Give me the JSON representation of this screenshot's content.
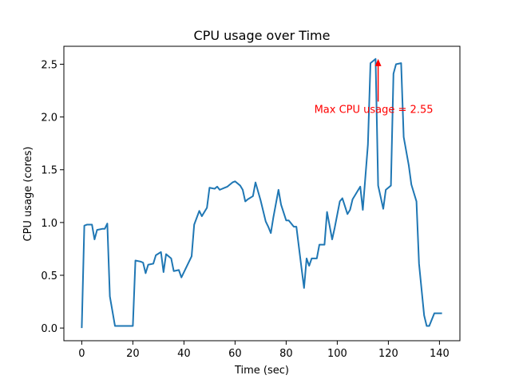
{
  "chart_data": {
    "type": "line",
    "title": "CPU usage over Time",
    "xlabel": "Time (sec)",
    "ylabel": "CPU usage (cores)",
    "xlim": [
      -7,
      148
    ],
    "ylim": [
      -0.12,
      2.67
    ],
    "xticks": [
      0,
      20,
      40,
      60,
      80,
      100,
      120,
      140
    ],
    "yticks": [
      0.0,
      0.5,
      1.0,
      1.5,
      2.0,
      2.5
    ],
    "xtick_labels": [
      "0",
      "20",
      "40",
      "60",
      "80",
      "100",
      "120",
      "140"
    ],
    "ytick_labels": [
      "0.0",
      "0.5",
      "1.0",
      "1.5",
      "2.0",
      "2.5"
    ],
    "grid": false,
    "line_color": "#1f77b4",
    "series": [
      {
        "x": [
          0,
          1,
          2,
          4,
          5,
          6,
          8,
          9,
          10,
          11,
          13,
          14,
          16,
          18,
          19,
          20,
          21,
          23,
          24,
          25,
          26,
          28,
          29,
          31,
          32,
          33,
          35,
          36,
          38,
          39,
          41,
          43,
          44,
          46,
          47,
          49,
          50,
          52,
          53,
          54,
          56,
          57,
          59,
          60,
          62,
          63,
          64,
          65,
          67,
          68,
          70,
          72,
          73,
          74,
          75,
          77,
          78,
          80,
          81,
          83,
          84,
          86,
          87,
          88,
          89,
          90,
          92,
          93,
          95,
          96,
          98,
          99,
          101,
          102,
          104,
          105,
          106,
          107,
          109,
          110,
          112,
          113,
          115,
          116,
          118,
          119,
          121,
          122,
          123,
          125,
          126,
          128,
          129,
          131,
          132,
          134,
          135,
          136,
          138,
          139,
          141
        ],
        "y": [
          0.0,
          0.97,
          0.98,
          0.98,
          0.84,
          0.93,
          0.94,
          0.94,
          0.99,
          0.3,
          0.02,
          0.02,
          0.02,
          0.02,
          0.02,
          0.02,
          0.64,
          0.63,
          0.62,
          0.52,
          0.6,
          0.61,
          0.69,
          0.72,
          0.53,
          0.7,
          0.66,
          0.54,
          0.55,
          0.48,
          0.58,
          0.68,
          0.98,
          1.11,
          1.06,
          1.14,
          1.33,
          1.32,
          1.34,
          1.31,
          1.33,
          1.34,
          1.38,
          1.39,
          1.35,
          1.31,
          1.2,
          1.22,
          1.25,
          1.38,
          1.21,
          1.01,
          0.96,
          0.9,
          1.05,
          1.31,
          1.17,
          1.02,
          1.02,
          0.96,
          0.96,
          0.57,
          0.38,
          0.66,
          0.59,
          0.66,
          0.66,
          0.79,
          0.79,
          1.1,
          0.84,
          0.95,
          1.2,
          1.23,
          1.08,
          1.12,
          1.22,
          1.26,
          1.34,
          1.12,
          1.74,
          2.51,
          2.55,
          1.35,
          1.13,
          1.31,
          1.35,
          2.41,
          2.5,
          2.51,
          1.81,
          1.54,
          1.36,
          1.2,
          0.61,
          0.12,
          0.02,
          0.02,
          0.14,
          0.14,
          0.14
        ]
      }
    ],
    "annotation": {
      "text": "Max CPU usage = 2.55",
      "color": "#ff0000",
      "arrow_tip": [
        116,
        2.55
      ],
      "text_anchor_point": [
        91,
        2.04
      ]
    }
  }
}
